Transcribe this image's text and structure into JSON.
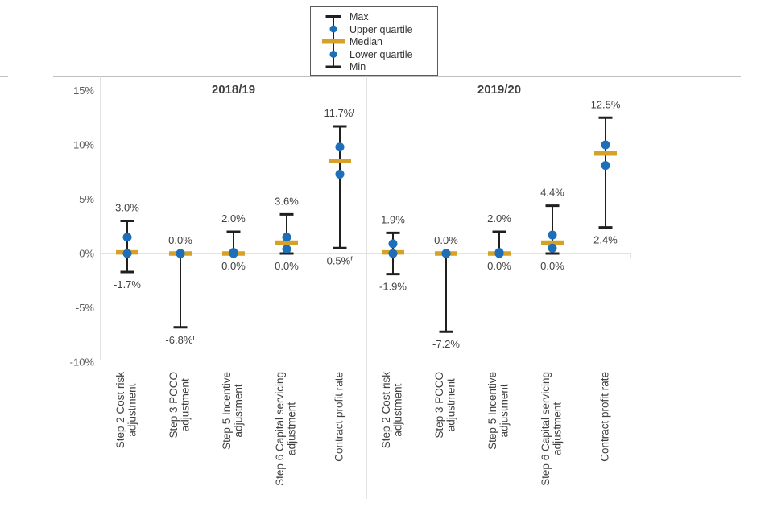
{
  "colors": {
    "quartile_dot": "#1e6fba",
    "median_bar": "#d5a227",
    "whisker": "#1f1f1f",
    "gridline": "#d9d9d9",
    "axis_text": "#595959",
    "label_text": "#404040",
    "title_text": "#404040",
    "rule": "#aaaaaa",
    "legend_border": "#595959"
  },
  "legend": {
    "items": [
      {
        "label": "Max",
        "marker": "whisker-cap"
      },
      {
        "label": "Upper quartile",
        "marker": "dot"
      },
      {
        "label": "Median",
        "marker": "bar"
      },
      {
        "label": "Lower quartile",
        "marker": "dot"
      },
      {
        "label": "Min",
        "marker": "whisker-cap"
      }
    ]
  },
  "chart_data": {
    "type": "box-whisker",
    "title": "",
    "xlabel": "",
    "ylabel": "",
    "unit": "%",
    "ylim": [
      -10,
      15
    ],
    "grid": "zero line only",
    "legend_position": "top",
    "y_ticks": [
      {
        "label": "15%",
        "value": 15
      },
      {
        "label": "10%",
        "value": 10
      },
      {
        "label": "5%",
        "value": 5
      },
      {
        "label": "0%",
        "value": 0
      },
      {
        "label": "-5%",
        "value": -5
      },
      {
        "label": "-10%",
        "value": -10
      }
    ],
    "categories": [
      "Step 2 Cost risk adjustment",
      "Step 3 POCO adjustment",
      "Step 5 Incentive adjustment",
      "Step 6 Capital servicing adjustment",
      "Contract profit rate"
    ],
    "category_lines": [
      [
        "Step 2 Cost risk",
        "adjustment"
      ],
      [
        "Step 3 POCO",
        "adjustment"
      ],
      [
        "Step 5 Incentive",
        "adjustment"
      ],
      [
        "Step 6 Capital servicing",
        "adjustment"
      ],
      [
        "Contract profit rate"
      ]
    ],
    "panels": [
      {
        "title": "2018/19",
        "points": [
          {
            "category": "Step 2 Cost risk adjustment",
            "max": 3.0,
            "upper_quartile": 1.5,
            "median": 0.1,
            "lower_quartile": 0.0,
            "min": -1.7,
            "max_label": "3.0%",
            "min_label": "-1.7%"
          },
          {
            "category": "Step 3 POCO adjustment",
            "max": 0.0,
            "upper_quartile": 0.0,
            "median": 0.0,
            "lower_quartile": 0.0,
            "min": -6.8,
            "max_label": "0.0%",
            "min_label": "-6.8%",
            "min_label_sup": "r"
          },
          {
            "category": "Step 5 Incentive adjustment",
            "max": 2.0,
            "upper_quartile": 0.1,
            "median": 0.0,
            "lower_quartile": 0.0,
            "min": 0.0,
            "max_label": "2.0%",
            "min_label": "0.0%"
          },
          {
            "category": "Step 6 Capital servicing adjustment",
            "max": 3.6,
            "upper_quartile": 1.5,
            "median": 1.0,
            "lower_quartile": 0.4,
            "min": 0.0,
            "max_label": "3.6%",
            "min_label": "0.0%"
          },
          {
            "category": "Contract profit rate",
            "max": 11.7,
            "upper_quartile": 9.8,
            "median": 8.5,
            "lower_quartile": 7.3,
            "min": 0.5,
            "max_label": "11.7%",
            "max_label_sup": "r",
            "min_label": "0.5%",
            "min_label_sup": "r"
          }
        ]
      },
      {
        "title": "2019/20",
        "points": [
          {
            "category": "Step 2 Cost risk adjustment",
            "max": 1.9,
            "upper_quartile": 0.9,
            "median": 0.1,
            "lower_quartile": 0.0,
            "min": -1.9,
            "max_label": "1.9%",
            "min_label": "-1.9%"
          },
          {
            "category": "Step 3 POCO adjustment",
            "max": 0.0,
            "upper_quartile": 0.0,
            "median": 0.0,
            "lower_quartile": 0.0,
            "min": -7.2,
            "max_label": "0.0%",
            "min_label": "-7.2%"
          },
          {
            "category": "Step 5 Incentive adjustment",
            "max": 2.0,
            "upper_quartile": 0.1,
            "median": 0.0,
            "lower_quartile": 0.0,
            "min": 0.0,
            "max_label": "2.0%",
            "min_label": "0.0%"
          },
          {
            "category": "Step 6 Capital servicing adjustment",
            "max": 4.4,
            "upper_quartile": 1.7,
            "median": 1.0,
            "lower_quartile": 0.5,
            "min": 0.0,
            "max_label": "4.4%",
            "min_label": "0.0%"
          },
          {
            "category": "Contract profit rate",
            "max": 12.5,
            "upper_quartile": 10.0,
            "median": 9.2,
            "lower_quartile": 8.1,
            "min": 2.4,
            "max_label": "12.5%",
            "min_label": "2.4%"
          }
        ]
      }
    ]
  }
}
